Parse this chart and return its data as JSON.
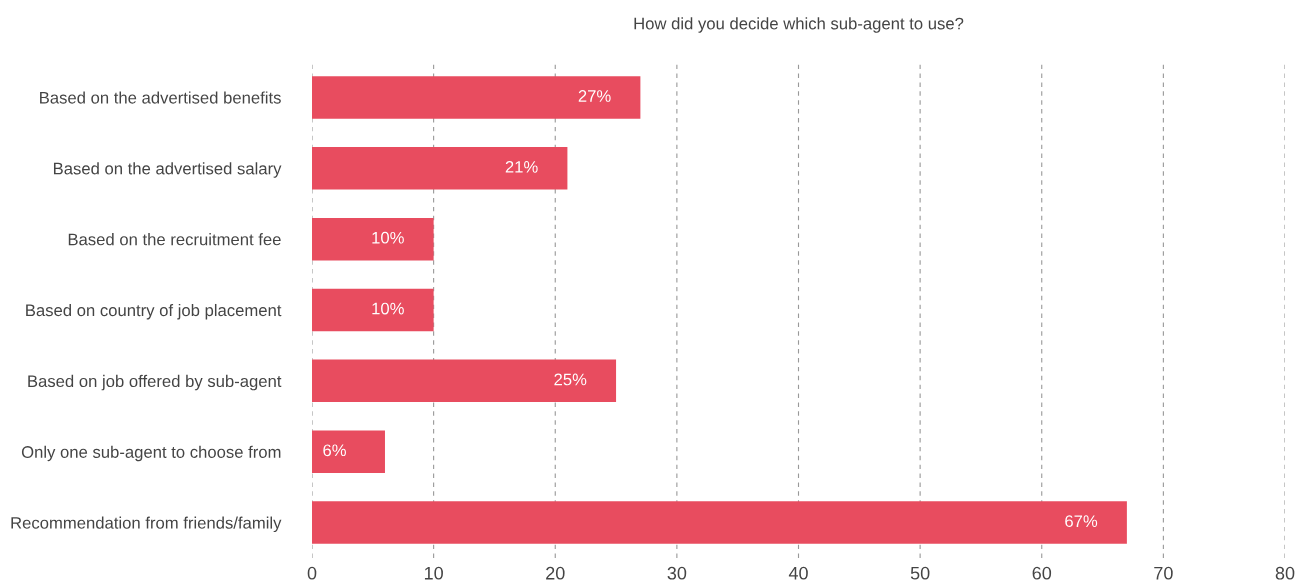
{
  "chart_data": {
    "type": "bar",
    "orientation": "horizontal",
    "title": "How did you decide which sub-agent to use?",
    "categories": [
      "Based on the advertised benefits",
      "Based on the advertised salary",
      "Based on the recruitment fee",
      "Based on country of job placement",
      "Based on job offered by sub-agent",
      "Only one sub-agent to choose from",
      "Recommendation from friends/family"
    ],
    "values": [
      27,
      21,
      10,
      10,
      25,
      6,
      67
    ],
    "value_labels": [
      "27%",
      "21%",
      "10%",
      "10%",
      "25%",
      "6%",
      "67%"
    ],
    "color": "#e84c5f",
    "xlim": [
      0,
      80
    ],
    "xticks": [
      0,
      10,
      20,
      30,
      40,
      50,
      60,
      70,
      80
    ],
    "grid": "x"
  }
}
